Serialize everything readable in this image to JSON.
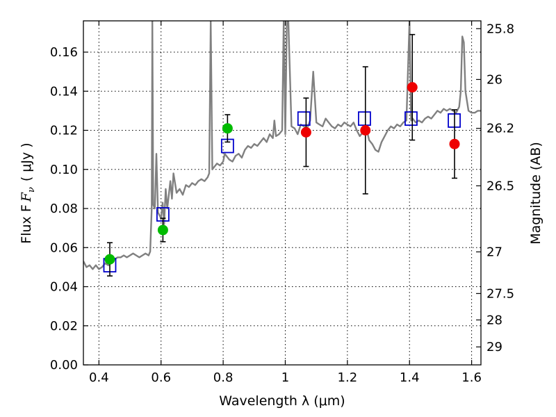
{
  "chart_data": {
    "type": "scatter",
    "xlabel": "Wavelength  λ (μm)",
    "ylabel": "Flux  F",
    "ylabel_sub": "ν",
    "ylabel_unit": "( μJy )",
    "y2label": "Magnitude (AB)",
    "xlim": [
      0.35,
      1.63
    ],
    "ylim": [
      0.0,
      0.176
    ],
    "grid": true,
    "x_ticks": [
      {
        "value": 0.4,
        "label": "0.4"
      },
      {
        "value": 0.6,
        "label": "0.6"
      },
      {
        "value": 0.8,
        "label": "0.8"
      },
      {
        "value": 1.0,
        "label": "1"
      },
      {
        "value": 1.2,
        "label": "1.2"
      },
      {
        "value": 1.4,
        "label": "1.4"
      },
      {
        "value": 1.6,
        "label": "1.6"
      }
    ],
    "y_ticks": [
      {
        "value": 0.0,
        "label": "0.00"
      },
      {
        "value": 0.02,
        "label": "0.02"
      },
      {
        "value": 0.04,
        "label": "0.04"
      },
      {
        "value": 0.06,
        "label": "0.06"
      },
      {
        "value": 0.08,
        "label": "0.08"
      },
      {
        "value": 0.1,
        "label": "0.10"
      },
      {
        "value": 0.12,
        "label": "0.12"
      },
      {
        "value": 0.14,
        "label": "0.14"
      },
      {
        "value": 0.16,
        "label": "0.16"
      }
    ],
    "y2_ticks": [
      {
        "flux": 0.172,
        "label": "25.8"
      },
      {
        "flux": 0.146,
        "label": "26"
      },
      {
        "flux": 0.121,
        "label": "26.2"
      },
      {
        "flux": 0.0916,
        "label": "26.5"
      },
      {
        "flux": 0.0578,
        "label": "27"
      },
      {
        "flux": 0.0365,
        "label": "27.5"
      },
      {
        "flux": 0.023,
        "label": "28"
      },
      {
        "flux": 0.0092,
        "label": "29"
      }
    ],
    "colors": {
      "spectrum": "#808080",
      "model_squares": "#0000cc",
      "green_points": "#00bb00",
      "red_points": "#ee0000",
      "errorbars": "#000000"
    },
    "spectrum": [
      [
        0.35,
        0.053
      ],
      [
        0.36,
        0.05
      ],
      [
        0.37,
        0.051
      ],
      [
        0.38,
        0.049
      ],
      [
        0.39,
        0.051
      ],
      [
        0.4,
        0.049
      ],
      [
        0.41,
        0.05
      ],
      [
        0.42,
        0.052
      ],
      [
        0.43,
        0.051
      ],
      [
        0.44,
        0.052
      ],
      [
        0.45,
        0.054
      ],
      [
        0.46,
        0.055
      ],
      [
        0.47,
        0.055
      ],
      [
        0.48,
        0.056
      ],
      [
        0.49,
        0.055
      ],
      [
        0.5,
        0.056
      ],
      [
        0.51,
        0.057
      ],
      [
        0.52,
        0.056
      ],
      [
        0.53,
        0.055
      ],
      [
        0.54,
        0.056
      ],
      [
        0.55,
        0.057
      ],
      [
        0.56,
        0.056
      ],
      [
        0.565,
        0.058
      ],
      [
        0.57,
        0.08
      ],
      [
        0.572,
        0.176
      ],
      [
        0.575,
        0.082
      ],
      [
        0.58,
        0.08
      ],
      [
        0.585,
        0.108
      ],
      [
        0.59,
        0.078
      ],
      [
        0.6,
        0.075
      ],
      [
        0.605,
        0.083
      ],
      [
        0.61,
        0.072
      ],
      [
        0.615,
        0.09
      ],
      [
        0.62,
        0.08
      ],
      [
        0.63,
        0.094
      ],
      [
        0.635,
        0.085
      ],
      [
        0.64,
        0.098
      ],
      [
        0.65,
        0.088
      ],
      [
        0.66,
        0.09
      ],
      [
        0.67,
        0.087
      ],
      [
        0.68,
        0.092
      ],
      [
        0.69,
        0.091
      ],
      [
        0.7,
        0.093
      ],
      [
        0.71,
        0.092
      ],
      [
        0.72,
        0.094
      ],
      [
        0.73,
        0.095
      ],
      [
        0.74,
        0.094
      ],
      [
        0.75,
        0.096
      ],
      [
        0.755,
        0.098
      ],
      [
        0.76,
        0.176
      ],
      [
        0.765,
        0.1
      ],
      [
        0.77,
        0.101
      ],
      [
        0.78,
        0.103
      ],
      [
        0.79,
        0.102
      ],
      [
        0.8,
        0.104
      ],
      [
        0.805,
        0.108
      ],
      [
        0.81,
        0.107
      ],
      [
        0.82,
        0.105
      ],
      [
        0.83,
        0.104
      ],
      [
        0.84,
        0.107
      ],
      [
        0.85,
        0.108
      ],
      [
        0.86,
        0.106
      ],
      [
        0.87,
        0.11
      ],
      [
        0.88,
        0.112
      ],
      [
        0.89,
        0.111
      ],
      [
        0.9,
        0.113
      ],
      [
        0.91,
        0.112
      ],
      [
        0.92,
        0.114
      ],
      [
        0.93,
        0.116
      ],
      [
        0.94,
        0.114
      ],
      [
        0.95,
        0.118
      ],
      [
        0.96,
        0.116
      ],
      [
        0.965,
        0.125
      ],
      [
        0.97,
        0.117
      ],
      [
        0.98,
        0.118
      ],
      [
        0.99,
        0.12
      ],
      [
        0.995,
        0.176
      ],
      [
        1.0,
        0.118
      ],
      [
        1.005,
        0.176
      ],
      [
        1.01,
        0.176
      ],
      [
        1.02,
        0.122
      ],
      [
        1.03,
        0.121
      ],
      [
        1.04,
        0.118
      ],
      [
        1.05,
        0.123
      ],
      [
        1.06,
        0.122
      ],
      [
        1.07,
        0.121
      ],
      [
        1.08,
        0.125
      ],
      [
        1.09,
        0.15
      ],
      [
        1.1,
        0.124
      ],
      [
        1.11,
        0.123
      ],
      [
        1.12,
        0.122
      ],
      [
        1.13,
        0.126
      ],
      [
        1.14,
        0.124
      ],
      [
        1.15,
        0.122
      ],
      [
        1.16,
        0.121
      ],
      [
        1.17,
        0.123
      ],
      [
        1.18,
        0.122
      ],
      [
        1.19,
        0.124
      ],
      [
        1.2,
        0.123
      ],
      [
        1.21,
        0.122
      ],
      [
        1.22,
        0.124
      ],
      [
        1.23,
        0.12
      ],
      [
        1.24,
        0.117
      ],
      [
        1.25,
        0.119
      ],
      [
        1.26,
        0.122
      ],
      [
        1.27,
        0.115
      ],
      [
        1.28,
        0.113
      ],
      [
        1.29,
        0.11
      ],
      [
        1.3,
        0.109
      ],
      [
        1.31,
        0.114
      ],
      [
        1.32,
        0.117
      ],
      [
        1.33,
        0.12
      ],
      [
        1.34,
        0.122
      ],
      [
        1.35,
        0.121
      ],
      [
        1.36,
        0.123
      ],
      [
        1.37,
        0.122
      ],
      [
        1.38,
        0.124
      ],
      [
        1.39,
        0.125
      ],
      [
        1.4,
        0.176
      ],
      [
        1.405,
        0.125
      ],
      [
        1.41,
        0.126
      ],
      [
        1.42,
        0.124
      ],
      [
        1.43,
        0.125
      ],
      [
        1.44,
        0.124
      ],
      [
        1.45,
        0.126
      ],
      [
        1.46,
        0.127
      ],
      [
        1.47,
        0.126
      ],
      [
        1.48,
        0.128
      ],
      [
        1.49,
        0.13
      ],
      [
        1.5,
        0.129
      ],
      [
        1.51,
        0.131
      ],
      [
        1.52,
        0.13
      ],
      [
        1.53,
        0.131
      ],
      [
        1.54,
        0.13
      ],
      [
        1.55,
        0.129
      ],
      [
        1.56,
        0.132
      ],
      [
        1.565,
        0.14
      ],
      [
        1.57,
        0.168
      ],
      [
        1.575,
        0.165
      ],
      [
        1.58,
        0.14
      ],
      [
        1.59,
        0.13
      ],
      [
        1.6,
        0.129
      ],
      [
        1.61,
        0.129
      ],
      [
        1.62,
        0.13
      ],
      [
        1.63,
        0.13
      ]
    ],
    "model_squares": [
      {
        "x": 0.435,
        "y": 0.051
      },
      {
        "x": 0.606,
        "y": 0.077
      },
      {
        "x": 0.814,
        "y": 0.112
      },
      {
        "x": 1.06,
        "y": 0.126
      },
      {
        "x": 1.255,
        "y": 0.126
      },
      {
        "x": 1.405,
        "y": 0.126
      },
      {
        "x": 1.544,
        "y": 0.125
      }
    ],
    "green_points": [
      {
        "x": 0.435,
        "y": 0.054,
        "err": 0.0085
      },
      {
        "x": 0.606,
        "y": 0.069,
        "err": 0.006
      },
      {
        "x": 0.814,
        "y": 0.121,
        "err": 0.007
      }
    ],
    "red_points": [
      {
        "x": 1.067,
        "y": 0.119,
        "err": 0.0175
      },
      {
        "x": 1.258,
        "y": 0.12,
        "err": 0.0325
      },
      {
        "x": 1.409,
        "y": 0.142,
        "err": 0.027
      },
      {
        "x": 1.545,
        "y": 0.113,
        "err": 0.0175
      }
    ]
  }
}
